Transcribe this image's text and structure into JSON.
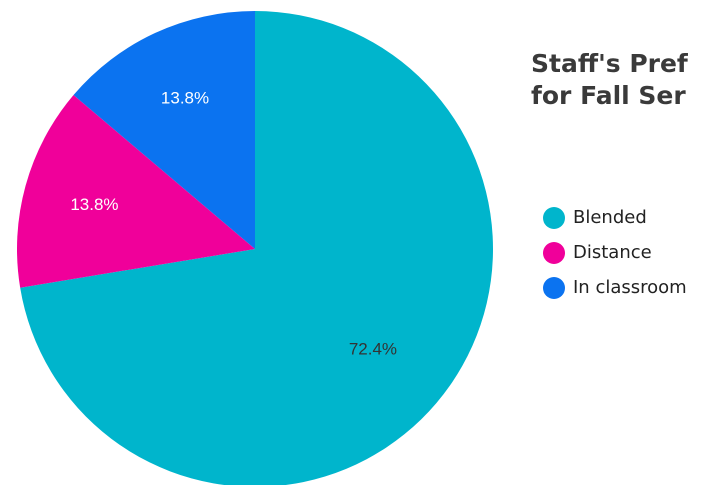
{
  "chart_data": {
    "type": "pie",
    "title_lines": [
      "Staff's Pref",
      "for Fall Ser"
    ],
    "slices": [
      {
        "name": "Blended",
        "value": 72.4,
        "label": "72.4%",
        "color": "#00b5cc"
      },
      {
        "name": "Distance",
        "value": 13.8,
        "label": "13.8%",
        "color": "#f0009a"
      },
      {
        "name": "In classroom",
        "value": 13.8,
        "label": "13.8%",
        "color": "#0b73f0"
      }
    ],
    "legend": {
      "position": "right"
    }
  }
}
